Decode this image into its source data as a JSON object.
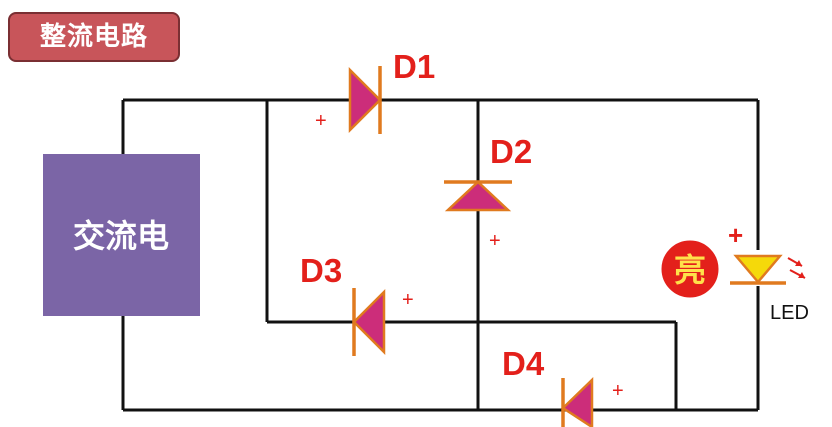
{
  "title": "整流电路",
  "source": {
    "label": "交流电",
    "color": "#7b65a6"
  },
  "diodes": [
    {
      "id": "D1",
      "label": "D1"
    },
    {
      "id": "D2",
      "label": "D2"
    },
    {
      "id": "D3",
      "label": "D3"
    },
    {
      "id": "D4",
      "label": "D4"
    }
  ],
  "plus_sign": "+",
  "led": {
    "label": "LED",
    "status": "亮",
    "color": "#f5d90a"
  },
  "colors": {
    "accent": "#e3201b",
    "diode_fill": "#cc2d7a",
    "diode_edge": "#e07a1f",
    "title_bg": "#c8555a"
  }
}
